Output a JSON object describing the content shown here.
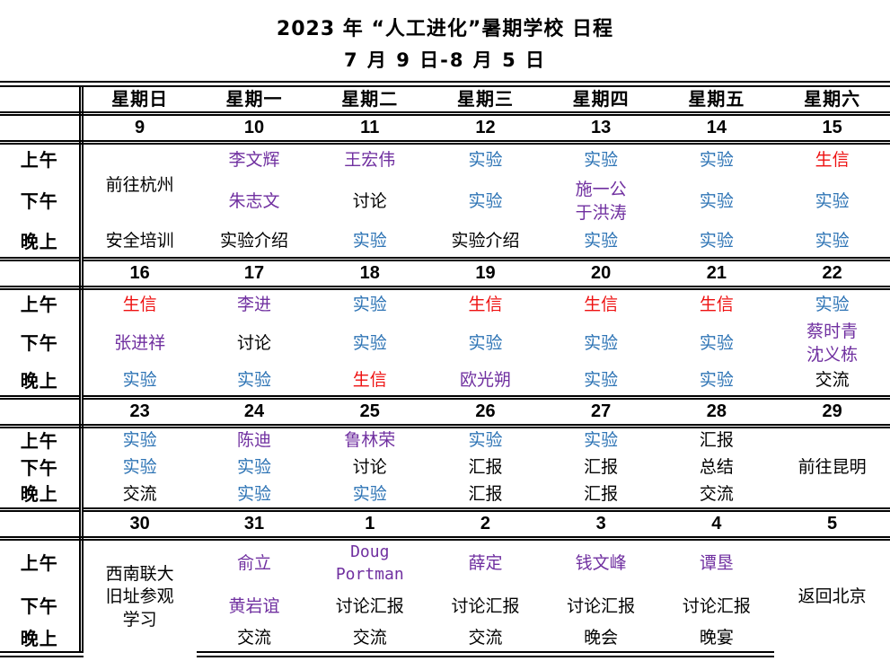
{
  "title": "2023 年 “人工进化”暑期学校 日程",
  "subtitle": "7 月 9 日-8 月 5 日",
  "colors": {
    "speaker": "#7030A0",
    "exp": "#2E74B5",
    "bio": "#EE1111",
    "plain": "#000000"
  },
  "weekday_headers": [
    "星期日",
    "星期一",
    "星期二",
    "星期三",
    "星期四",
    "星期五",
    "星期六"
  ],
  "period_labels": [
    "上午",
    "下午",
    "晚上"
  ],
  "weeks": [
    {
      "dates": [
        "9",
        "10",
        "11",
        "12",
        "13",
        "14",
        "15"
      ],
      "periods": [
        {
          "label": "上午",
          "cells": [
            {
              "text": "前往杭州",
              "type": "plain",
              "rowspan": 2
            },
            {
              "text": "李文辉",
              "type": "speaker"
            },
            {
              "text": "王宏伟",
              "type": "speaker"
            },
            {
              "text": "实验",
              "type": "exp"
            },
            {
              "text": "实验",
              "type": "exp"
            },
            {
              "text": "实验",
              "type": "exp"
            },
            {
              "text": "生信",
              "type": "bio"
            }
          ]
        },
        {
          "label": "下午",
          "cells": [
            null,
            {
              "text": "朱志文",
              "type": "speaker"
            },
            {
              "text": "讨论",
              "type": "plain"
            },
            {
              "text": "实验",
              "type": "exp"
            },
            {
              "lines": [
                "施一公",
                "于洪涛"
              ],
              "type": "speaker"
            },
            {
              "text": "实验",
              "type": "exp"
            },
            {
              "text": "实验",
              "type": "exp"
            }
          ]
        },
        {
          "label": "晚上",
          "cells": [
            {
              "text": "安全培训",
              "type": "plain"
            },
            {
              "text": "实验介绍",
              "type": "plain"
            },
            {
              "text": "实验",
              "type": "exp"
            },
            {
              "text": "实验介绍",
              "type": "plain"
            },
            {
              "text": "实验",
              "type": "exp"
            },
            {
              "text": "实验",
              "type": "exp"
            },
            {
              "text": "实验",
              "type": "exp"
            }
          ]
        }
      ]
    },
    {
      "dates": [
        "16",
        "17",
        "18",
        "19",
        "20",
        "21",
        "22"
      ],
      "periods": [
        {
          "label": "上午",
          "cells": [
            {
              "text": "生信",
              "type": "bio"
            },
            {
              "text": "李进",
              "type": "speaker"
            },
            {
              "text": "实验",
              "type": "exp"
            },
            {
              "text": "生信",
              "type": "bio"
            },
            {
              "text": "生信",
              "type": "bio"
            },
            {
              "text": "生信",
              "type": "bio"
            },
            {
              "text": "实验",
              "type": "exp"
            }
          ]
        },
        {
          "label": "下午",
          "cells": [
            {
              "text": "张进祥",
              "type": "speaker"
            },
            {
              "text": "讨论",
              "type": "plain"
            },
            {
              "text": "实验",
              "type": "exp"
            },
            {
              "text": "实验",
              "type": "exp"
            },
            {
              "text": "实验",
              "type": "exp"
            },
            {
              "text": "实验",
              "type": "exp"
            },
            {
              "lines": [
                "蔡时青",
                "沈义栋"
              ],
              "type": "speaker"
            }
          ]
        },
        {
          "label": "晚上",
          "cells": [
            {
              "text": "实验",
              "type": "exp"
            },
            {
              "text": "实验",
              "type": "exp"
            },
            {
              "text": "生信",
              "type": "bio"
            },
            {
              "text": "欧光朔",
              "type": "speaker"
            },
            {
              "text": "实验",
              "type": "exp"
            },
            {
              "text": "实验",
              "type": "exp"
            },
            {
              "text": "交流",
              "type": "plain"
            }
          ]
        }
      ]
    },
    {
      "dates": [
        "23",
        "24",
        "25",
        "26",
        "27",
        "28",
        "29"
      ],
      "periods": [
        {
          "label": "上午",
          "cells": [
            {
              "text": "实验",
              "type": "exp"
            },
            {
              "text": "陈迪",
              "type": "speaker"
            },
            {
              "text": "鲁林荣",
              "type": "speaker"
            },
            {
              "text": "实验",
              "type": "exp"
            },
            {
              "text": "实验",
              "type": "exp"
            },
            {
              "text": "汇报",
              "type": "plain"
            },
            {
              "text": "前往昆明",
              "type": "plain",
              "rowspan": 3
            }
          ]
        },
        {
          "label": "下午",
          "cells": [
            {
              "text": "实验",
              "type": "exp"
            },
            {
              "text": "实验",
              "type": "exp"
            },
            {
              "text": "讨论",
              "type": "plain"
            },
            {
              "text": "汇报",
              "type": "plain"
            },
            {
              "text": "汇报",
              "type": "plain"
            },
            {
              "text": "总结",
              "type": "plain"
            },
            null
          ]
        },
        {
          "label": "晚上",
          "cells": [
            {
              "text": "交流",
              "type": "plain"
            },
            {
              "text": "实验",
              "type": "exp"
            },
            {
              "text": "实验",
              "type": "exp"
            },
            {
              "text": "汇报",
              "type": "plain"
            },
            {
              "text": "汇报",
              "type": "plain"
            },
            {
              "text": "交流",
              "type": "plain"
            },
            null
          ]
        }
      ]
    },
    {
      "dates": [
        "30",
        "31",
        "1",
        "2",
        "3",
        "4",
        "5"
      ],
      "periods": [
        {
          "label": "上午",
          "cells": [
            {
              "lines": [
                "西南联大",
                "旧址参观",
                "学习"
              ],
              "type": "plain",
              "rowspan": 3
            },
            {
              "text": "俞立",
              "type": "speaker"
            },
            {
              "lines": [
                "Doug",
                "Portman"
              ],
              "type": "speaker"
            },
            {
              "text": "薛定",
              "type": "speaker"
            },
            {
              "text": "钱文峰",
              "type": "speaker"
            },
            {
              "text": "谭垦",
              "type": "speaker"
            },
            {
              "text": "返回北京",
              "type": "plain",
              "rowspan": 3
            }
          ]
        },
        {
          "label": "下午",
          "cells": [
            null,
            {
              "text": "黄岩谊",
              "type": "speaker"
            },
            {
              "text": "讨论汇报",
              "type": "plain"
            },
            {
              "text": "讨论汇报",
              "type": "plain"
            },
            {
              "text": "讨论汇报",
              "type": "plain"
            },
            {
              "text": "讨论汇报",
              "type": "plain"
            },
            null
          ]
        },
        {
          "label": "晚上",
          "cells": [
            null,
            {
              "text": "交流",
              "type": "plain"
            },
            {
              "text": "交流",
              "type": "plain"
            },
            {
              "text": "交流",
              "type": "plain"
            },
            {
              "text": "晚会",
              "type": "plain"
            },
            {
              "text": "晚宴",
              "type": "plain"
            },
            null
          ]
        }
      ]
    }
  ]
}
